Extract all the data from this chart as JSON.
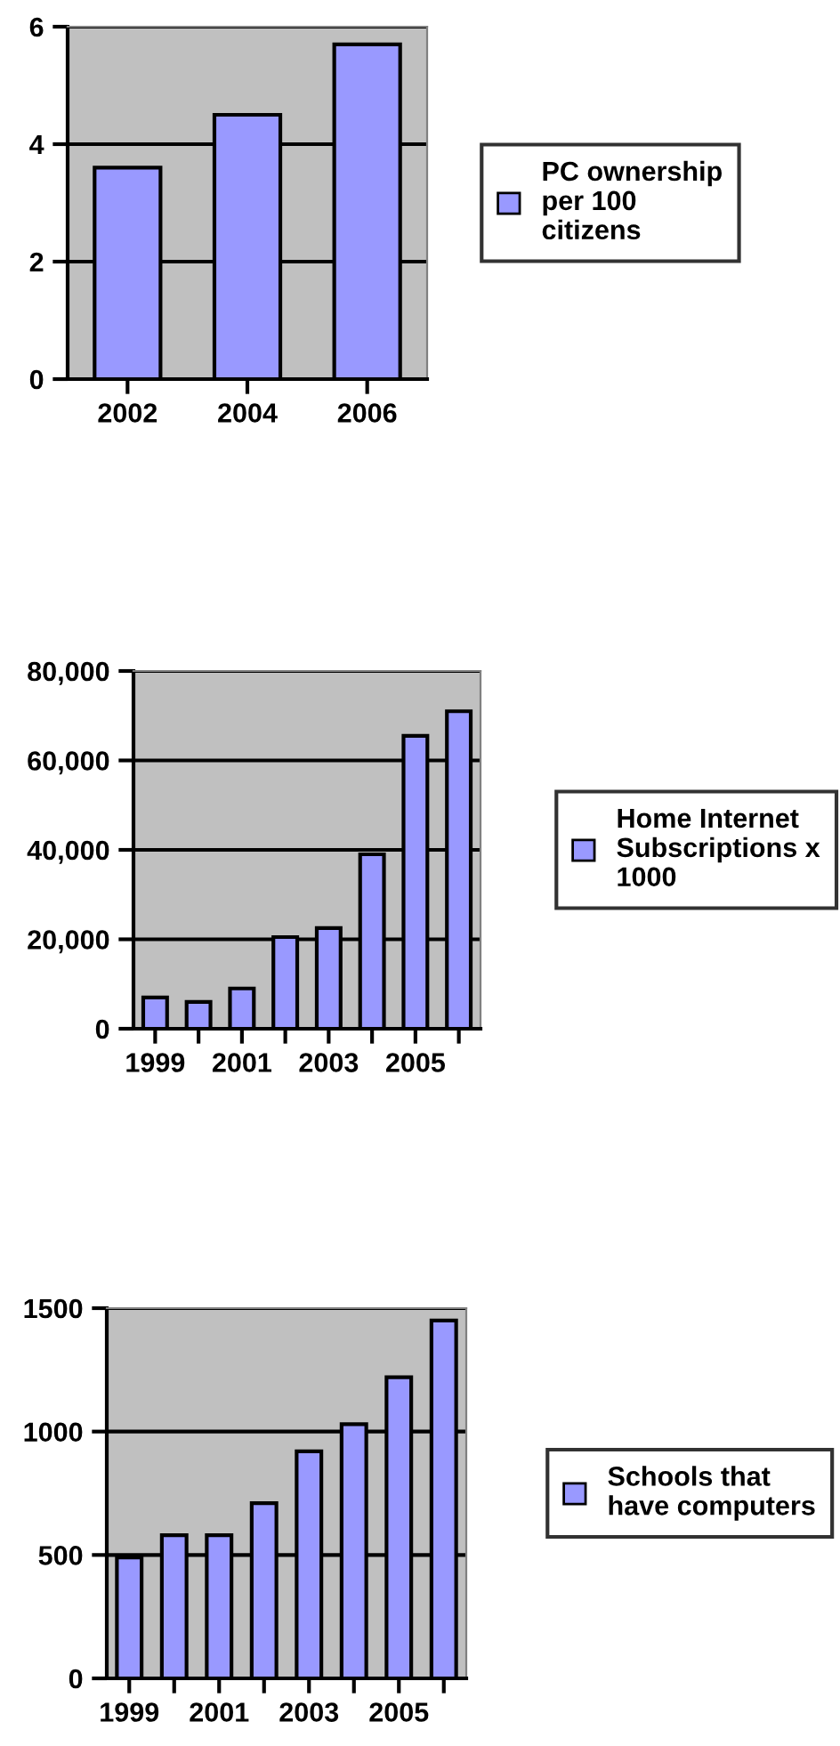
{
  "chart_data": [
    {
      "type": "bar",
      "categories": [
        "2002",
        "2004",
        "2006"
      ],
      "series": [
        {
          "name": "PC ownership\nper 100\ncitizens",
          "color": "#9999ff",
          "values": [
            3.6,
            4.5,
            5.7
          ]
        }
      ],
      "ylim": [
        0,
        6
      ],
      "yticks": [
        0,
        2,
        4,
        6
      ],
      "grid": "y",
      "legend": "right"
    },
    {
      "type": "bar",
      "categories": [
        "1999",
        null,
        "2001",
        null,
        "2003",
        null,
        "2005",
        null
      ],
      "series": [
        {
          "name": "Home Internet\nSubscriptions x\n1000",
          "color": "#9999ff",
          "values": [
            7000,
            6000,
            9000,
            20500,
            22500,
            39000,
            65500,
            71000
          ]
        }
      ],
      "ylim": [
        0,
        80000
      ],
      "yticks": [
        {
          "value": 0,
          "label": "0"
        },
        {
          "value": 20000,
          "label": "20,000"
        },
        {
          "value": 40000,
          "label": "40,000"
        },
        {
          "value": 60000,
          "label": "60,000"
        },
        {
          "value": 80000,
          "label": "80,000"
        }
      ],
      "grid": "y",
      "legend": "right"
    },
    {
      "type": "bar",
      "categories": [
        "1999",
        null,
        "2001",
        null,
        "2003",
        null,
        "2005",
        null
      ],
      "series": [
        {
          "name": "Schools that\nhave computers",
          "color": "#9999ff",
          "values": [
            490,
            580,
            580,
            710,
            920,
            1030,
            1220,
            1450
          ]
        }
      ],
      "ylim": [
        0,
        1500
      ],
      "yticks": [
        0,
        500,
        1000,
        1500
      ],
      "grid": "y",
      "legend": "right"
    }
  ]
}
